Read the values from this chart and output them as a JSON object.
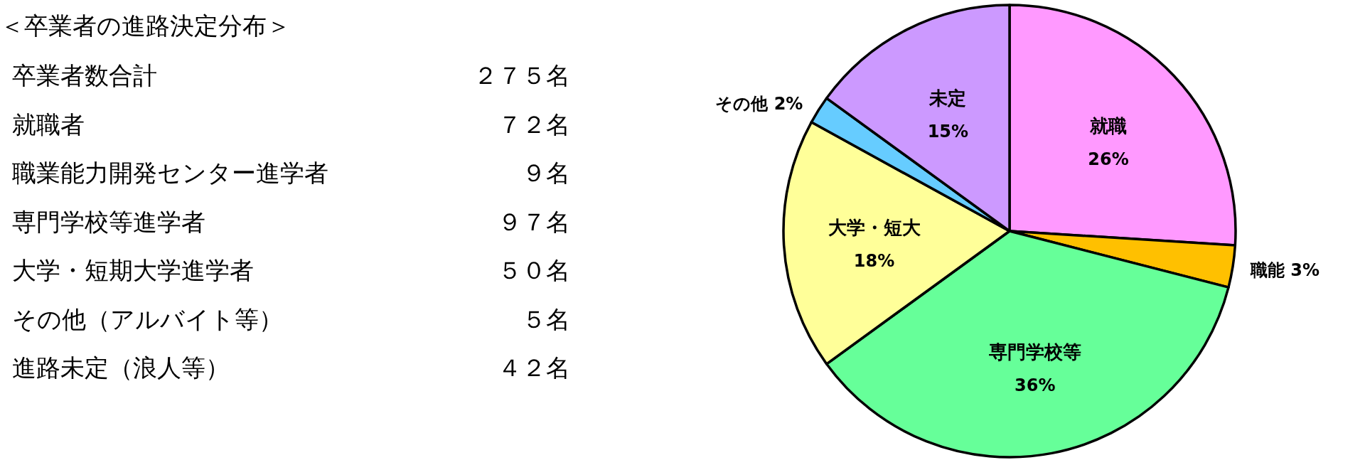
{
  "chart_data": [
    {
      "type": "other",
      "title": "＜卒業者の進路決定分布＞",
      "categories": [
        "卒業者数合計",
        "就職者",
        "職業能力開発センター進学者",
        "専門学校等進学者",
        "大学・短期大学進学者",
        "その他（アルバイト等）",
        "進路未定（浪人等）"
      ],
      "values": [
        275,
        72,
        9,
        97,
        50,
        5,
        42
      ],
      "value_labels": [
        "２７５名",
        "７２名",
        "９名",
        "９７名",
        "５０名",
        "５名",
        "４２名"
      ]
    },
    {
      "type": "pie",
      "categories": [
        "就職",
        "職能",
        "専門学校等",
        "大学・短大",
        "その他",
        "未定"
      ],
      "values": [
        26,
        3,
        36,
        18,
        2,
        15
      ],
      "value_labels": [
        "26%",
        "3%",
        "36%",
        "18%",
        "2%",
        "15%"
      ],
      "colors": [
        "#ff99ff",
        "#ffc000",
        "#66ff99",
        "#ffff99",
        "#66ccff",
        "#cc99ff"
      ]
    }
  ]
}
